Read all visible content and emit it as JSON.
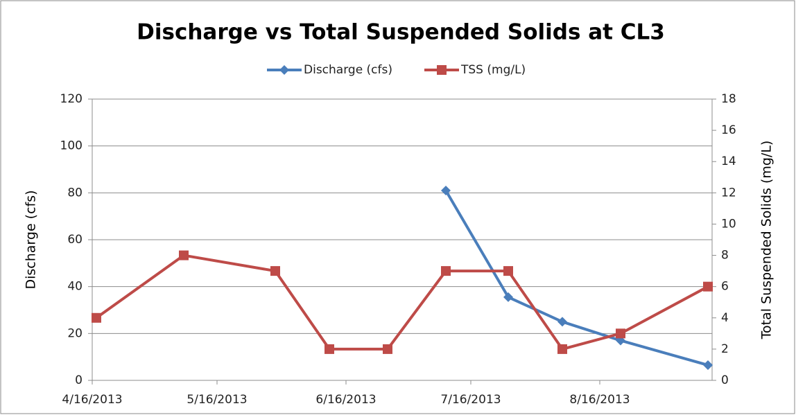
{
  "chart_data": {
    "type": "line",
    "title": "Discharge vs Total Suspended Solids at CL3",
    "y_label": "Discharge (cfs)",
    "y2_label": "Total Suspended Solids (mg/L)",
    "x": [
      "4/17/2013",
      "5/8/2013",
      "5/30/2013",
      "6/12/2013",
      "6/26/2013",
      "7/10/2013",
      "7/25/2013",
      "8/7/2013",
      "8/21/2013",
      "9/11/2013"
    ],
    "series": [
      {
        "name": "Discharge (cfs)",
        "color": "#4a7ebb",
        "marker": "diamond",
        "values": [
          null,
          null,
          null,
          null,
          null,
          81,
          35.5,
          25,
          17,
          6.5
        ]
      },
      {
        "name": "TSS (mg/L)",
        "color": "#be4b48",
        "marker": "square",
        "axis": "y2",
        "values": [
          4,
          8,
          7,
          2,
          2,
          7,
          7,
          2,
          3,
          6
        ]
      }
    ],
    "xlim": [
      "4/16/2013",
      "9/12/2013"
    ],
    "xticks": [
      "4/16/2013",
      "5/16/2013",
      "6/16/2013",
      "7/16/2013",
      "8/16/2013"
    ],
    "ylim": [
      0,
      120
    ],
    "yticks": [
      0,
      20,
      40,
      60,
      80,
      100,
      120
    ],
    "y2lim": [
      0,
      18
    ],
    "y2ticks": [
      0,
      2,
      4,
      6,
      8,
      10,
      12,
      14,
      16,
      18
    ],
    "grid": true,
    "legend": "top"
  }
}
